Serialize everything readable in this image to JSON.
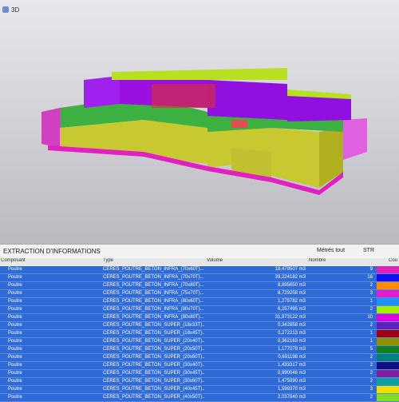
{
  "header": {
    "view_label": "3D"
  },
  "panel": {
    "title": "EXTRACTION D'INFORMATIONS",
    "controls": [
      "Métrés tout",
      "STR"
    ]
  },
  "table": {
    "columns": [
      "Composant",
      "Type",
      "Volume",
      "Nombre",
      "Cou"
    ],
    "rows": [
      [
        "Poutre",
        "CERES_POUTRE_BETON_INFRA_(70x60T)...",
        "18,479507 m3",
        9
      ],
      [
        "Poutre",
        "CERES_POUTRE_BETON_INFRA_(70x70T)...",
        "39,224182 m3",
        16
      ],
      [
        "Poutre",
        "CERES_POUTRE_BETON_INFRA_(70x80T)...",
        "8,895650 m3",
        2
      ],
      [
        "Poutre",
        "CERES_POUTRE_BETON_INFRA_(75x70T)...",
        "8,729258 m3",
        3
      ],
      [
        "Poutre",
        "CERES_POUTRE_BETON_INFRA_(80x60T)...",
        "1,279782 m3",
        1
      ],
      [
        "Poutre",
        "CERES_POUTRE_BETON_INFRA_(80x70T)...",
        "6,257495 m3",
        2
      ],
      [
        "Poutre",
        "CERES_POUTRE_BETON_INFRA_(80x80T)...",
        "31,973122 m3",
        10
      ],
      [
        "Poutre",
        "CERES_POUTRE_BETON_SUPER_(18x33T)...",
        "0,342858 m3",
        2
      ],
      [
        "Poutre",
        "CERES_POUTRE_BETON_SUPER_(18x45T)...",
        "0,272213 m3",
        1
      ],
      [
        "Poutre",
        "CERES_POUTRE_BETON_SUPER_(20x40T)...",
        "0,362163 m3",
        1
      ],
      [
        "Poutre",
        "CERES_POUTRE_BETON_SUPER_(20x50T)...",
        "1,177079 m3",
        5
      ],
      [
        "Poutre",
        "CERES_POUTRE_BETON_SUPER_(20x60T)...",
        "0,691198 m3",
        2
      ],
      [
        "Poutre",
        "CERES_POUTRE_BETON_SUPER_(30x40T)...",
        "1,433317 m3",
        2
      ],
      [
        "Poutre",
        "CERES_POUTRE_BETON_SUPER_(30x45T)...",
        "0,990046 m3",
        2
      ],
      [
        "Poutre",
        "CERES_POUTRE_BETON_SUPER_(30x60T)...",
        "1,475990 m3",
        2
      ],
      [
        "Poutre",
        "CERES_POUTRE_BETON_SUPER_(40x45T)...",
        "1,599370 m3",
        3
      ],
      [
        "Poutre",
        "CERES_POUTRE_BETON_SUPER_(40x50T)...",
        "2,037840 m3",
        2
      ]
    ],
    "colors": [
      "#e020c0",
      "#1010f0",
      "#ff8c00",
      "#e020d0",
      "#2090ff",
      "#a0f000",
      "#e000e0",
      "#6020c0",
      "#a00010",
      "#909000",
      "#108020",
      "#008080",
      "#101080",
      "#8020a0",
      "#10a0a0",
      "#f0e000",
      "#80e020"
    ]
  }
}
